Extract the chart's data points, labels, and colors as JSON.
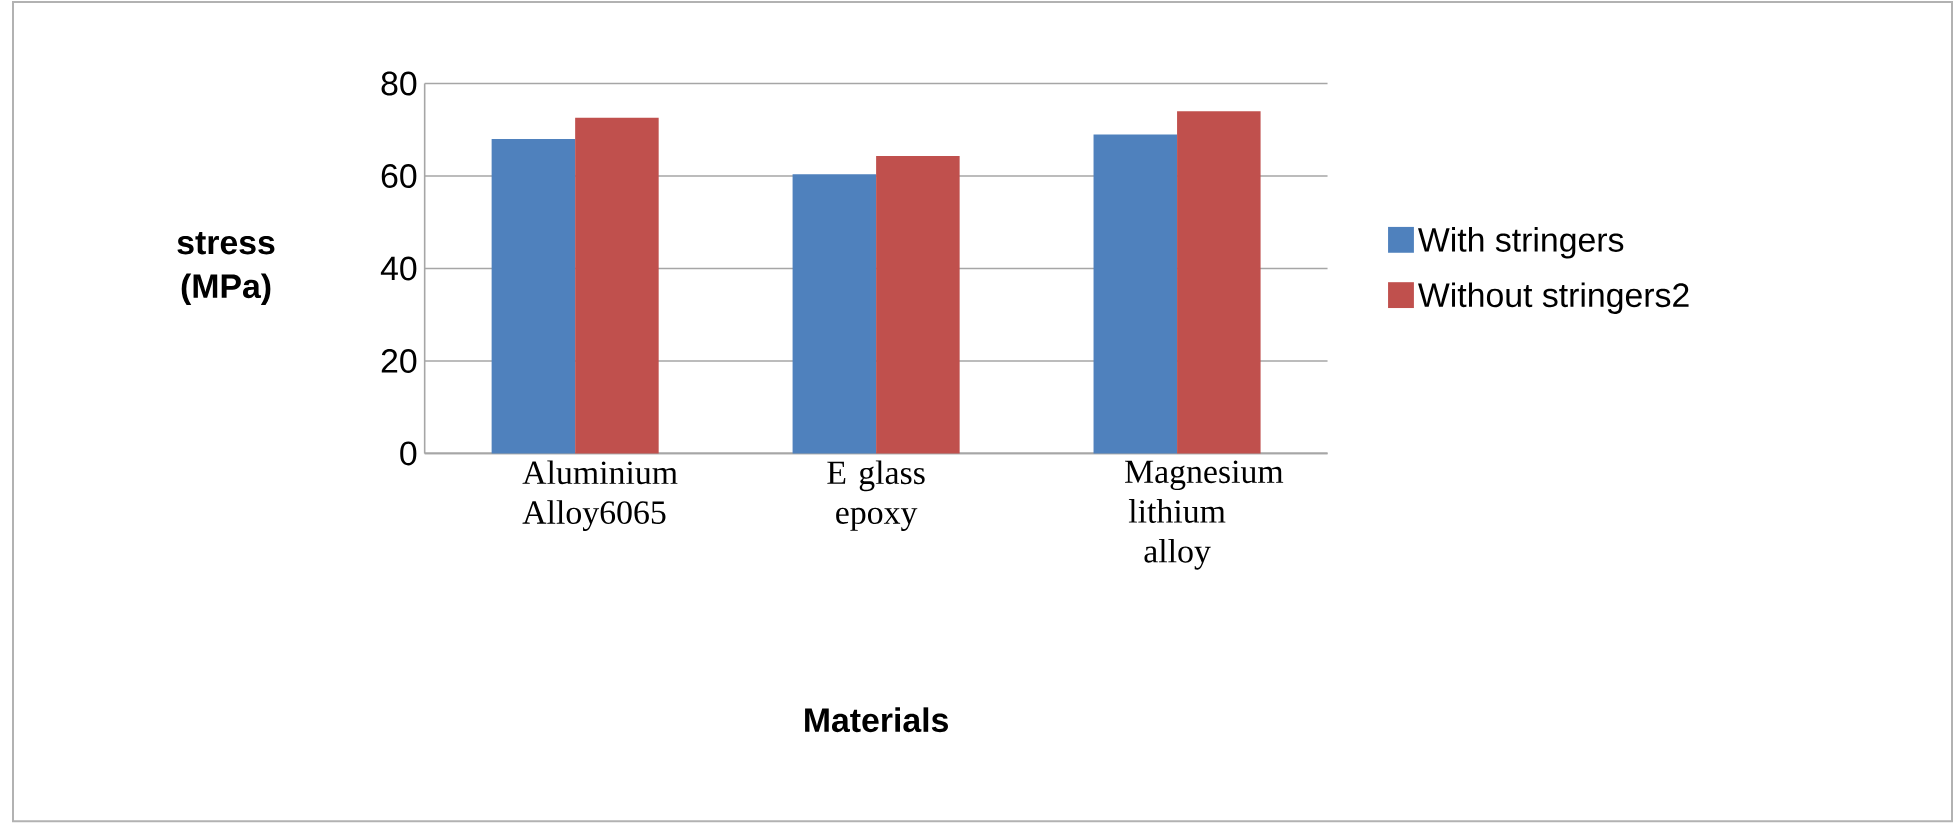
{
  "chart_data": {
    "type": "bar",
    "xlabel": "Materials",
    "ylabel": "stress (MPa)",
    "categories": [
      "Aluminium Alloy6065",
      "E glass epoxy",
      "Magnesium lithium alloy"
    ],
    "series": [
      {
        "name": "With stringers",
        "color": "#4f81bd",
        "values": [
          68,
          60.4,
          69
        ]
      },
      {
        "name": "Without stringers2",
        "color": "#c0504d",
        "values": [
          72.6,
          64.3,
          74
        ]
      }
    ],
    "ylim": [
      0,
      80
    ],
    "yticks": [
      0,
      20,
      40,
      60,
      80
    ],
    "grid": "y",
    "legend": "right"
  }
}
